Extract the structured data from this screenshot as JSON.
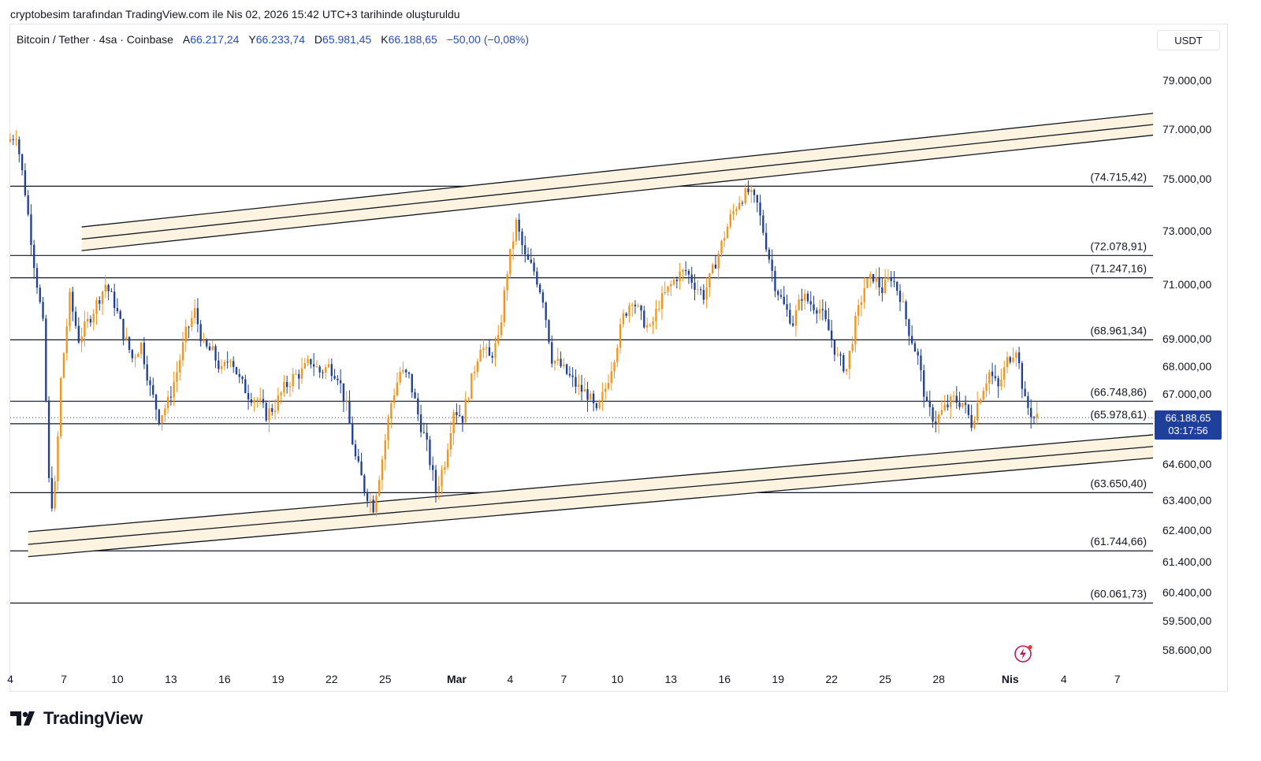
{
  "header": {
    "text": "cryptobesim tarafından TradingView.com ile Nis 02, 2026 15:42 UTC+3 tarihinde oluşturuldu"
  },
  "legend": {
    "symbol": "Bitcoin / Tether · 4sa · Coinbase",
    "open_label": "A",
    "open": "66.217,24",
    "high_label": "Y",
    "high": "66.233,74",
    "low_label": "D",
    "low": "65.981,45",
    "close_label": "K",
    "close": "66.188,65",
    "change": "−50,00 (−0,08%)"
  },
  "currency": "USDT",
  "current_price": {
    "price": "66.188,65",
    "countdown": "03:17:56"
  },
  "logo": {
    "text": "TradingView"
  },
  "icons": {
    "flash": "flash-icon",
    "logo": "tradingview-logo-icon"
  },
  "colors": {
    "up": "#f7931a",
    "down": "#1e3f9a",
    "channel_fill": "#fdf3e1",
    "line": "#131722",
    "badge": "#1e3f9a"
  },
  "chart_data": {
    "type": "candlestick",
    "x_axis_labels": [
      "4",
      "7",
      "10",
      "13",
      "16",
      "19",
      "22",
      "25",
      "Mar",
      "4",
      "7",
      "10",
      "13",
      "16",
      "19",
      "22",
      "25",
      "28",
      "Nis",
      "4",
      "7"
    ],
    "y_axis_labels": [
      "79.000,00",
      "77.000,00",
      "75.000,00",
      "73.000,00",
      "71.000,00",
      "69.000,00",
      "68.000,00",
      "67.000,00",
      "64.600,00",
      "63.400,00",
      "62.400,00",
      "61.400,00",
      "60.400,00",
      "59.500,00",
      "58.600,00"
    ],
    "ylim": [
      58000,
      80000
    ],
    "x_start": "2026-02-04",
    "x_end": "2026-04-09",
    "horizontal_levels": [
      {
        "value": 74715.42,
        "label": "(74.715,42)"
      },
      {
        "value": 72078.91,
        "label": "(72.078,91)"
      },
      {
        "value": 71247.16,
        "label": "(71.247,16)"
      },
      {
        "value": 68961.34,
        "label": "(68.961,34)"
      },
      {
        "value": 66748.86,
        "label": "(66.748,86)"
      },
      {
        "value": 65978.61,
        "label": "(65.978,61)"
      },
      {
        "value": 63650.4,
        "label": "(63.650,40)"
      },
      {
        "value": 61744.66,
        "label": "(61.744,66)"
      },
      {
        "value": 60061.73,
        "label": "(60.061,73)"
      }
    ],
    "channels": [
      {
        "name": "upper",
        "start": "2026-02-08",
        "end": "2026-04-09",
        "offsets": [
          0,
          -460,
          -890
        ],
        "start_value": 73150,
        "end_value": 77650
      },
      {
        "name": "lower",
        "start": "2026-02-05",
        "end": "2026-04-09",
        "offsets": [
          0,
          -400,
          -790
        ],
        "start_value": 62350,
        "end_value": 65600
      }
    ],
    "current_price": 66188.65,
    "price_path": [
      [
        "2026-02-04",
        76500
      ],
      [
        "2026-02-04T12",
        76800
      ],
      [
        "2026-02-05",
        74500
      ],
      [
        "2026-02-05T12",
        71800
      ],
      [
        "2026-02-06",
        69500
      ],
      [
        "2026-02-06T08",
        64000
      ],
      [
        "2026-02-06T14",
        63000
      ],
      [
        "2026-02-06T20",
        65500
      ],
      [
        "2026-02-07",
        67500
      ],
      [
        "2026-02-07T12",
        70500
      ],
      [
        "2026-02-08",
        69000
      ],
      [
        "2026-02-08T12",
        69600
      ],
      [
        "2026-02-09",
        70300
      ],
      [
        "2026-02-09T12",
        71000
      ],
      [
        "2026-02-10",
        70300
      ],
      [
        "2026-02-10T12",
        69200
      ],
      [
        "2026-02-11",
        68300
      ],
      [
        "2026-02-11T12",
        68800
      ],
      [
        "2026-02-12",
        67200
      ],
      [
        "2026-02-12T12",
        66200
      ],
      [
        "2026-02-13",
        66700
      ],
      [
        "2026-02-13T12",
        67800
      ],
      [
        "2026-02-14",
        69200
      ],
      [
        "2026-02-14T12",
        70000
      ],
      [
        "2026-02-15",
        68700
      ],
      [
        "2026-02-15T12",
        68500
      ],
      [
        "2026-02-16",
        67800
      ],
      [
        "2026-02-16T12",
        68400
      ],
      [
        "2026-02-17",
        67500
      ],
      [
        "2026-02-17T12",
        67000
      ],
      [
        "2026-02-18",
        66800
      ],
      [
        "2026-02-18T12",
        66300
      ],
      [
        "2026-02-19",
        66600
      ],
      [
        "2026-02-19T12",
        67200
      ],
      [
        "2026-02-20",
        67600
      ],
      [
        "2026-02-20T12",
        67800
      ],
      [
        "2026-02-21",
        68200
      ],
      [
        "2026-02-21T12",
        67800
      ],
      [
        "2026-02-22",
        68000
      ],
      [
        "2026-02-22T12",
        67700
      ],
      [
        "2026-02-23",
        66500
      ],
      [
        "2026-02-23T12",
        64800
      ],
      [
        "2026-02-24",
        63800
      ],
      [
        "2026-02-24T12",
        63200
      ],
      [
        "2026-02-25",
        64800
      ],
      [
        "2026-02-25T12",
        66700
      ],
      [
        "2026-02-26",
        67800
      ],
      [
        "2026-02-26T12",
        67600
      ],
      [
        "2026-02-27",
        66300
      ],
      [
        "2026-02-27T12",
        65200
      ],
      [
        "2026-02-28",
        63700
      ],
      [
        "2026-02-28T12",
        64700
      ],
      [
        "2026-03-01",
        66500
      ],
      [
        "2026-03-01T12",
        66200
      ],
      [
        "2026-03-02",
        67500
      ],
      [
        "2026-03-02T12",
        68800
      ],
      [
        "2026-03-03",
        68300
      ],
      [
        "2026-03-03T12",
        68900
      ],
      [
        "2026-03-04",
        71500
      ],
      [
        "2026-03-04T12",
        73300
      ],
      [
        "2026-03-05",
        72000
      ],
      [
        "2026-03-05T12",
        71500
      ],
      [
        "2026-03-06",
        70500
      ],
      [
        "2026-03-06T12",
        68300
      ],
      [
        "2026-03-07",
        68000
      ],
      [
        "2026-03-07T12",
        67600
      ],
      [
        "2026-03-08",
        67200
      ],
      [
        "2026-03-08T12",
        67000
      ],
      [
        "2026-03-09",
        66300
      ],
      [
        "2026-03-09T12",
        67200
      ],
      [
        "2026-03-10",
        68400
      ],
      [
        "2026-03-10T12",
        69800
      ],
      [
        "2026-03-11",
        70500
      ],
      [
        "2026-03-11T12",
        69800
      ],
      [
        "2026-03-12",
        69300
      ],
      [
        "2026-03-12T12",
        70300
      ],
      [
        "2026-03-13",
        70800
      ],
      [
        "2026-03-13T12",
        71300
      ],
      [
        "2026-03-14",
        71500
      ],
      [
        "2026-03-14T12",
        71000
      ],
      [
        "2026-03-15",
        70600
      ],
      [
        "2026-03-15T12",
        71500
      ],
      [
        "2026-03-16",
        72500
      ],
      [
        "2026-03-16T12",
        73500
      ],
      [
        "2026-03-17",
        74200
      ],
      [
        "2026-03-17T12",
        74500
      ],
      [
        "2026-03-18",
        74000
      ],
      [
        "2026-03-18T12",
        72500
      ],
      [
        "2026-03-19",
        71000
      ],
      [
        "2026-03-19T12",
        70200
      ],
      [
        "2026-03-20",
        69600
      ],
      [
        "2026-03-20T12",
        70600
      ],
      [
        "2026-03-21",
        70300
      ],
      [
        "2026-03-21T12",
        70100
      ],
      [
        "2026-03-22",
        69300
      ],
      [
        "2026-03-22T12",
        68300
      ],
      [
        "2026-03-23",
        67900
      ],
      [
        "2026-03-23T12",
        69600
      ],
      [
        "2026-03-24",
        70900
      ],
      [
        "2026-03-24T12",
        71300
      ],
      [
        "2026-03-25",
        70800
      ],
      [
        "2026-03-25T12",
        71300
      ],
      [
        "2026-03-26",
        70600
      ],
      [
        "2026-03-26T12",
        69300
      ],
      [
        "2026-03-27",
        68300
      ],
      [
        "2026-03-27T12",
        66500
      ],
      [
        "2026-03-28",
        66100
      ],
      [
        "2026-03-28T12",
        66500
      ],
      [
        "2026-03-29",
        66800
      ],
      [
        "2026-03-29T12",
        66700
      ],
      [
        "2026-03-30",
        66000
      ],
      [
        "2026-03-30T12",
        67000
      ],
      [
        "2026-03-31",
        67800
      ],
      [
        "2026-03-31T12",
        67200
      ],
      [
        "2026-04-01",
        68200
      ],
      [
        "2026-04-01T12",
        68700
      ],
      [
        "2026-04-02",
        66700
      ],
      [
        "2026-04-02T12",
        66188
      ]
    ]
  }
}
